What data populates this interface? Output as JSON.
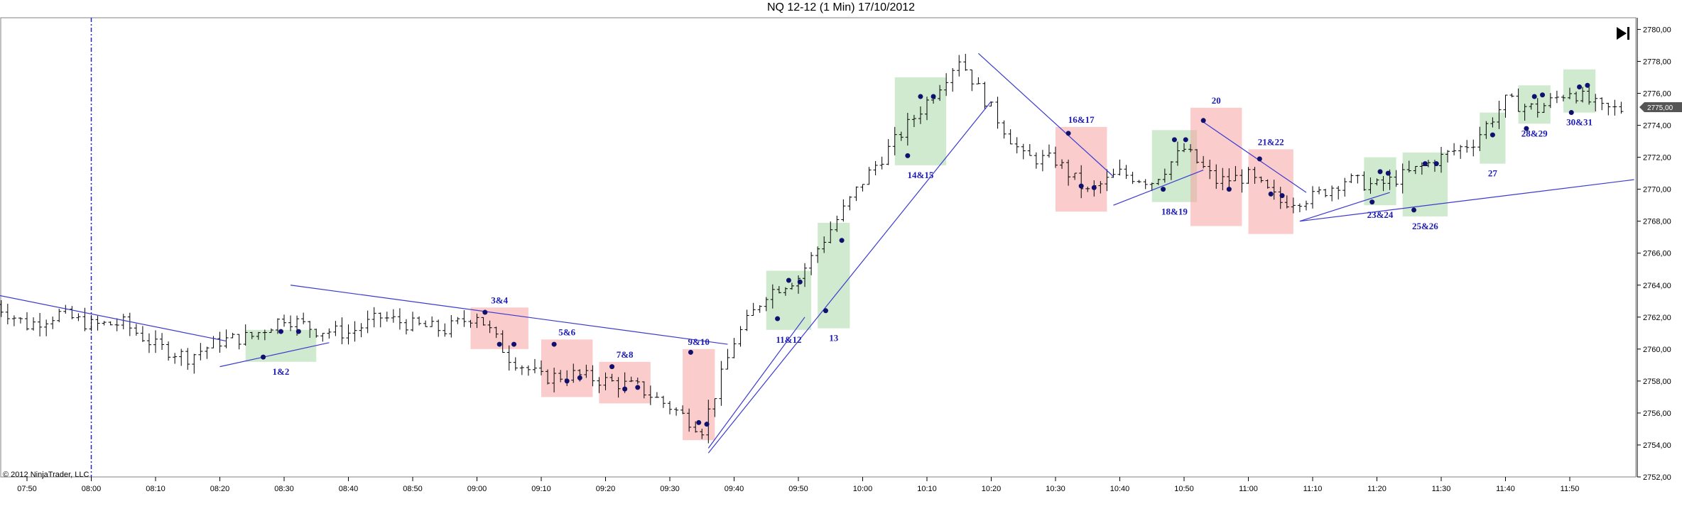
{
  "header": {
    "title": "NQ 12-12 (1 Min)  17/10/2012"
  },
  "copyright": "© 2012 NinjaTrader, LLC",
  "current_price_label": "2775,00",
  "nav_icon": "skip-to-end-icon",
  "colors": {
    "bar": "#000000",
    "trendline": "#3a3acf",
    "label": "#1c1cb4",
    "dot": "#10106e",
    "green_box": "#a8d8a8",
    "red_box": "#f5a3a3",
    "session_line": "#2222cc"
  },
  "chart_data": {
    "type": "ohlc",
    "title": "NQ 12-12 (1 Min)  17/10/2012",
    "xlabel": "",
    "ylabel": "",
    "ylim": [
      2752,
      2780
    ],
    "grid": false,
    "x_ticks": [
      "07:50",
      "08:00",
      "08:10",
      "08:20",
      "08:30",
      "08:40",
      "08:50",
      "09:00",
      "09:10",
      "09:20",
      "09:30",
      "09:40",
      "09:50",
      "10:00",
      "10:10",
      "10:20",
      "10:30",
      "10:40",
      "10:50",
      "11:00",
      "11:10",
      "11:20",
      "11:30",
      "11:40",
      "11:50"
    ],
    "y_ticks": [
      "2752,00",
      "2754,00",
      "2756,00",
      "2758,00",
      "2760,00",
      "2762,00",
      "2764,00",
      "2766,00",
      "2768,00",
      "2770,00",
      "2772,00",
      "2774,00",
      "2776,00",
      "2778,00",
      "2780,00"
    ],
    "session_marker": "08:00",
    "series": [
      {
        "x": [
          "07:45",
          "07:50",
          "07:55",
          "08:00",
          "08:05",
          "08:10",
          "08:15",
          "08:20",
          "08:25",
          "08:30",
          "08:35",
          "08:40",
          "08:45",
          "08:50",
          "08:55",
          "09:00",
          "09:05",
          "09:10",
          "09:15",
          "09:20",
          "09:25",
          "09:30",
          "09:35",
          "09:40",
          "09:45",
          "09:50",
          "09:55",
          "10:00",
          "10:05",
          "10:10",
          "10:15",
          "10:20",
          "10:25",
          "10:30",
          "10:35",
          "10:40",
          "10:45",
          "10:50",
          "10:55",
          "11:00",
          "11:05",
          "11:10",
          "11:15",
          "11:20",
          "11:25",
          "11:30",
          "11:35",
          "11:40",
          "11:45",
          "11:50",
          "11:55"
        ],
        "values": [
          2762.8,
          2761.5,
          2762.2,
          2761.5,
          2761.6,
          2760.2,
          2759.5,
          2760.5,
          2760.8,
          2762.0,
          2761.2,
          2761.0,
          2762.0,
          2761.5,
          2761.2,
          2762.2,
          2759.5,
          2758.2,
          2758.4,
          2758.0,
          2757.6,
          2756.4,
          2755.0,
          2760.5,
          2763.5,
          2764.5,
          2767.5,
          2770.5,
          2773.0,
          2775.5,
          2778.2,
          2775.0,
          2772.0,
          2771.8,
          2769.8,
          2771.0,
          2770.5,
          2772.5,
          2770.5,
          2770.8,
          2769.2,
          2769.5,
          2770.6,
          2770.2,
          2771.0,
          2772.0,
          2773.0,
          2775.5,
          2775.0,
          2776.2,
          2775.0
        ]
      }
    ],
    "boxes": [
      {
        "label": "1&2",
        "color": "green",
        "t0": "08:24",
        "t1": "08:35",
        "low": 2759.2,
        "high": 2761.2,
        "dots": [
          2759.5,
          2761.1,
          2761.1
        ]
      },
      {
        "label": "3&4",
        "color": "red",
        "t0": "08:59",
        "t1": "09:08",
        "low": 2760.0,
        "high": 2762.6,
        "dots": [
          2762.3,
          2760.3,
          2760.3
        ]
      },
      {
        "label": "5&6",
        "color": "red",
        "t0": "09:10",
        "t1": "09:18",
        "low": 2757.0,
        "high": 2760.6,
        "dots": [
          2760.3,
          2758.0,
          2758.2
        ]
      },
      {
        "label": "7&8",
        "color": "red",
        "t0": "09:19",
        "t1": "09:27",
        "low": 2756.6,
        "high": 2759.2,
        "dots": [
          2758.9,
          2757.5,
          2757.6
        ]
      },
      {
        "label": "9&10",
        "color": "red",
        "t0": "09:32",
        "t1": "09:37",
        "low": 2754.3,
        "high": 2760.0,
        "dots": [
          2759.8,
          2755.4,
          2755.3
        ]
      },
      {
        "label": "11&12",
        "color": "green",
        "t0": "09:45",
        "t1": "09:52",
        "low": 2761.2,
        "high": 2764.9,
        "dots": [
          2761.9,
          2764.3,
          2764.2
        ]
      },
      {
        "label": "13",
        "color": "green",
        "t0": "09:53",
        "t1": "09:58",
        "low": 2761.3,
        "high": 2767.9,
        "dots": [
          2762.4,
          2766.8
        ]
      },
      {
        "label": "14&15",
        "color": "green",
        "t0": "10:05",
        "t1": "10:13",
        "low": 2771.5,
        "high": 2777.0,
        "dots": [
          2772.1,
          2775.8,
          2775.8
        ]
      },
      {
        "label": "16&17",
        "color": "red",
        "t0": "10:30",
        "t1": "10:38",
        "low": 2768.6,
        "high": 2773.9,
        "dots": [
          2773.5,
          2770.2,
          2770.1
        ]
      },
      {
        "label": "18&19",
        "color": "green",
        "t0": "10:45",
        "t1": "10:52",
        "low": 2769.2,
        "high": 2773.7,
        "dots": [
          2770.0,
          2773.1,
          2773.1
        ]
      },
      {
        "label": "20",
        "color": "red",
        "t0": "10:51",
        "t1": "10:59",
        "low": 2767.7,
        "high": 2775.1,
        "dots": [
          2774.3,
          2770.0
        ]
      },
      {
        "label": "21&22",
        "color": "red",
        "t0": "11:00",
        "t1": "11:07",
        "low": 2767.2,
        "high": 2772.5,
        "dots": [
          2771.9,
          2769.7,
          2769.6
        ]
      },
      {
        "label": "23&24",
        "color": "green",
        "t0": "11:18",
        "t1": "11:23",
        "low": 2769.0,
        "high": 2772.0,
        "dots": [
          2769.2,
          2771.1,
          2771.0
        ]
      },
      {
        "label": "25&26",
        "color": "green",
        "t0": "11:24",
        "t1": "11:31",
        "low": 2768.3,
        "high": 2772.3,
        "dots": [
          2768.7,
          2771.6,
          2771.6
        ]
      },
      {
        "label": "27",
        "color": "green",
        "t0": "11:36",
        "t1": "11:40",
        "low": 2771.6,
        "high": 2774.8,
        "dots": [
          2773.4
        ]
      },
      {
        "label": "28&29",
        "color": "green",
        "t0": "11:42",
        "t1": "11:47",
        "low": 2774.1,
        "high": 2776.5,
        "dots": [
          2773.8,
          2775.8,
          2775.9
        ]
      },
      {
        "label": "30&31",
        "color": "green",
        "t0": "11:49",
        "t1": "11:54",
        "low": 2774.8,
        "high": 2777.5,
        "dots": [
          2774.8,
          2776.4,
          2776.5
        ]
      }
    ],
    "trendlines": [
      {
        "t0": "07:34",
        "y0": 2764.3,
        "t1": "08:21",
        "y1": 2760.5
      },
      {
        "t0": "08:20",
        "y0": 2758.9,
        "t1": "08:37",
        "y1": 2760.4
      },
      {
        "t0": "08:31",
        "y0": 2764.0,
        "t1": "09:39",
        "y1": 2760.3
      },
      {
        "t0": "09:36",
        "y0": 2753.8,
        "t1": "09:51",
        "y1": 2762.0
      },
      {
        "t0": "09:36",
        "y0": 2753.5,
        "t1": "10:20",
        "y1": 2775.5
      },
      {
        "t0": "10:18",
        "y0": 2778.5,
        "t1": "10:39",
        "y1": 2770.8
      },
      {
        "t0": "10:39",
        "y0": 2769.0,
        "t1": "10:53",
        "y1": 2771.2
      },
      {
        "t0": "10:53",
        "y0": 2774.2,
        "t1": "11:09",
        "y1": 2769.8
      },
      {
        "t0": "11:08",
        "y0": 2768.0,
        "t1": "11:22",
        "y1": 2769.8
      },
      {
        "t0": "11:08",
        "y0": 2768.0,
        "t1": "12:00",
        "y1": 2770.6
      }
    ]
  }
}
